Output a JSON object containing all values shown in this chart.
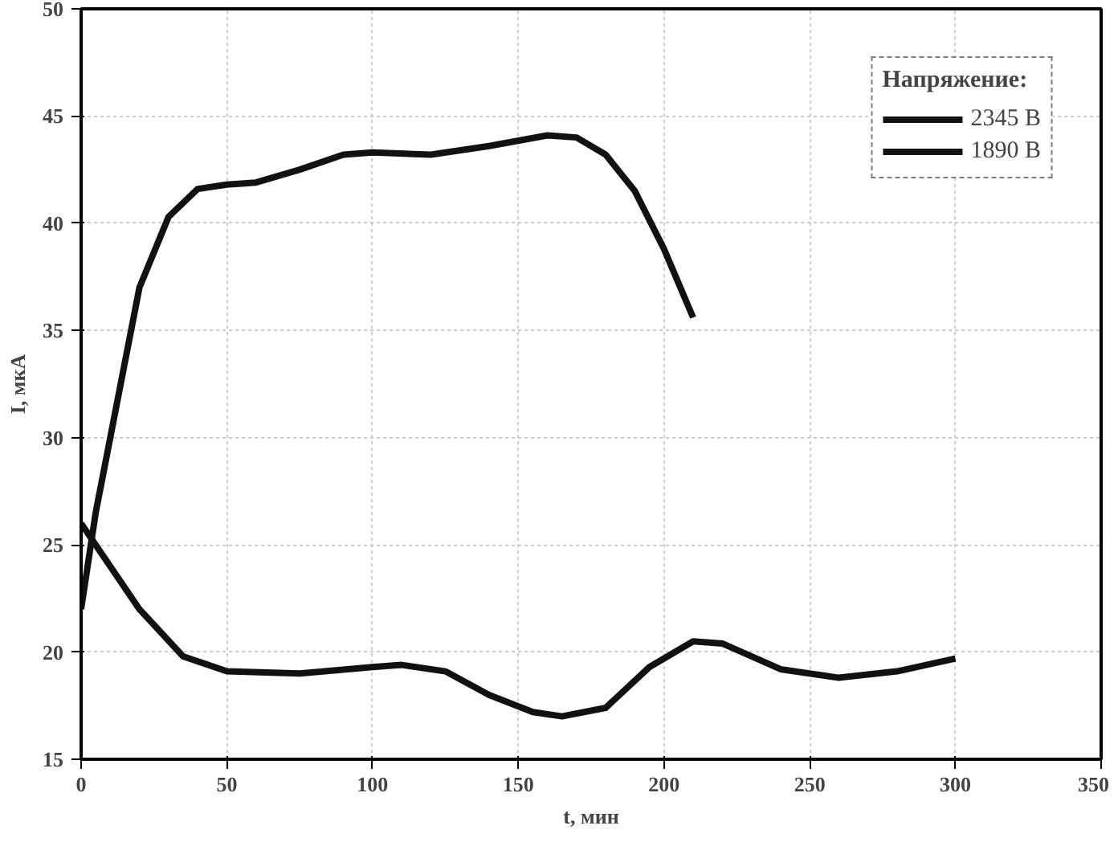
{
  "chart_data": {
    "type": "line",
    "xlabel": "t, мин",
    "ylabel": "I, мкА",
    "legend_title": "Напряжение:",
    "legend": "top right",
    "grid": true,
    "line_style": "solid",
    "xlim": [
      0,
      350
    ],
    "ylim": [
      15,
      50
    ],
    "xticks": [
      0,
      50,
      100,
      150,
      200,
      250,
      300,
      350
    ],
    "yticks": [
      15,
      20,
      25,
      30,
      35,
      40,
      45,
      50
    ],
    "series": [
      {
        "name": "2345 В",
        "color": "#111111",
        "x": [
          0,
          5,
          10,
          20,
          30,
          40,
          50,
          60,
          75,
          90,
          100,
          120,
          140,
          160,
          170,
          180,
          190,
          200,
          210
        ],
        "values": [
          22,
          26.5,
          30,
          37,
          40.3,
          41.6,
          41.8,
          41.9,
          42.5,
          43.2,
          43.3,
          43.2,
          43.6,
          44.1,
          44.0,
          43.2,
          41.5,
          38.8,
          35.6
        ]
      },
      {
        "name": "1890 В",
        "color": "#111111",
        "x": [
          0,
          5,
          20,
          35,
          50,
          75,
          100,
          110,
          125,
          140,
          155,
          165,
          180,
          195,
          210,
          220,
          240,
          260,
          280,
          300
        ],
        "values": [
          26,
          25,
          22,
          19.8,
          19.1,
          19.0,
          19.3,
          19.4,
          19.1,
          18.0,
          17.2,
          17.0,
          17.4,
          19.3,
          20.5,
          20.4,
          19.2,
          18.8,
          19.1,
          19.7
        ]
      }
    ]
  }
}
